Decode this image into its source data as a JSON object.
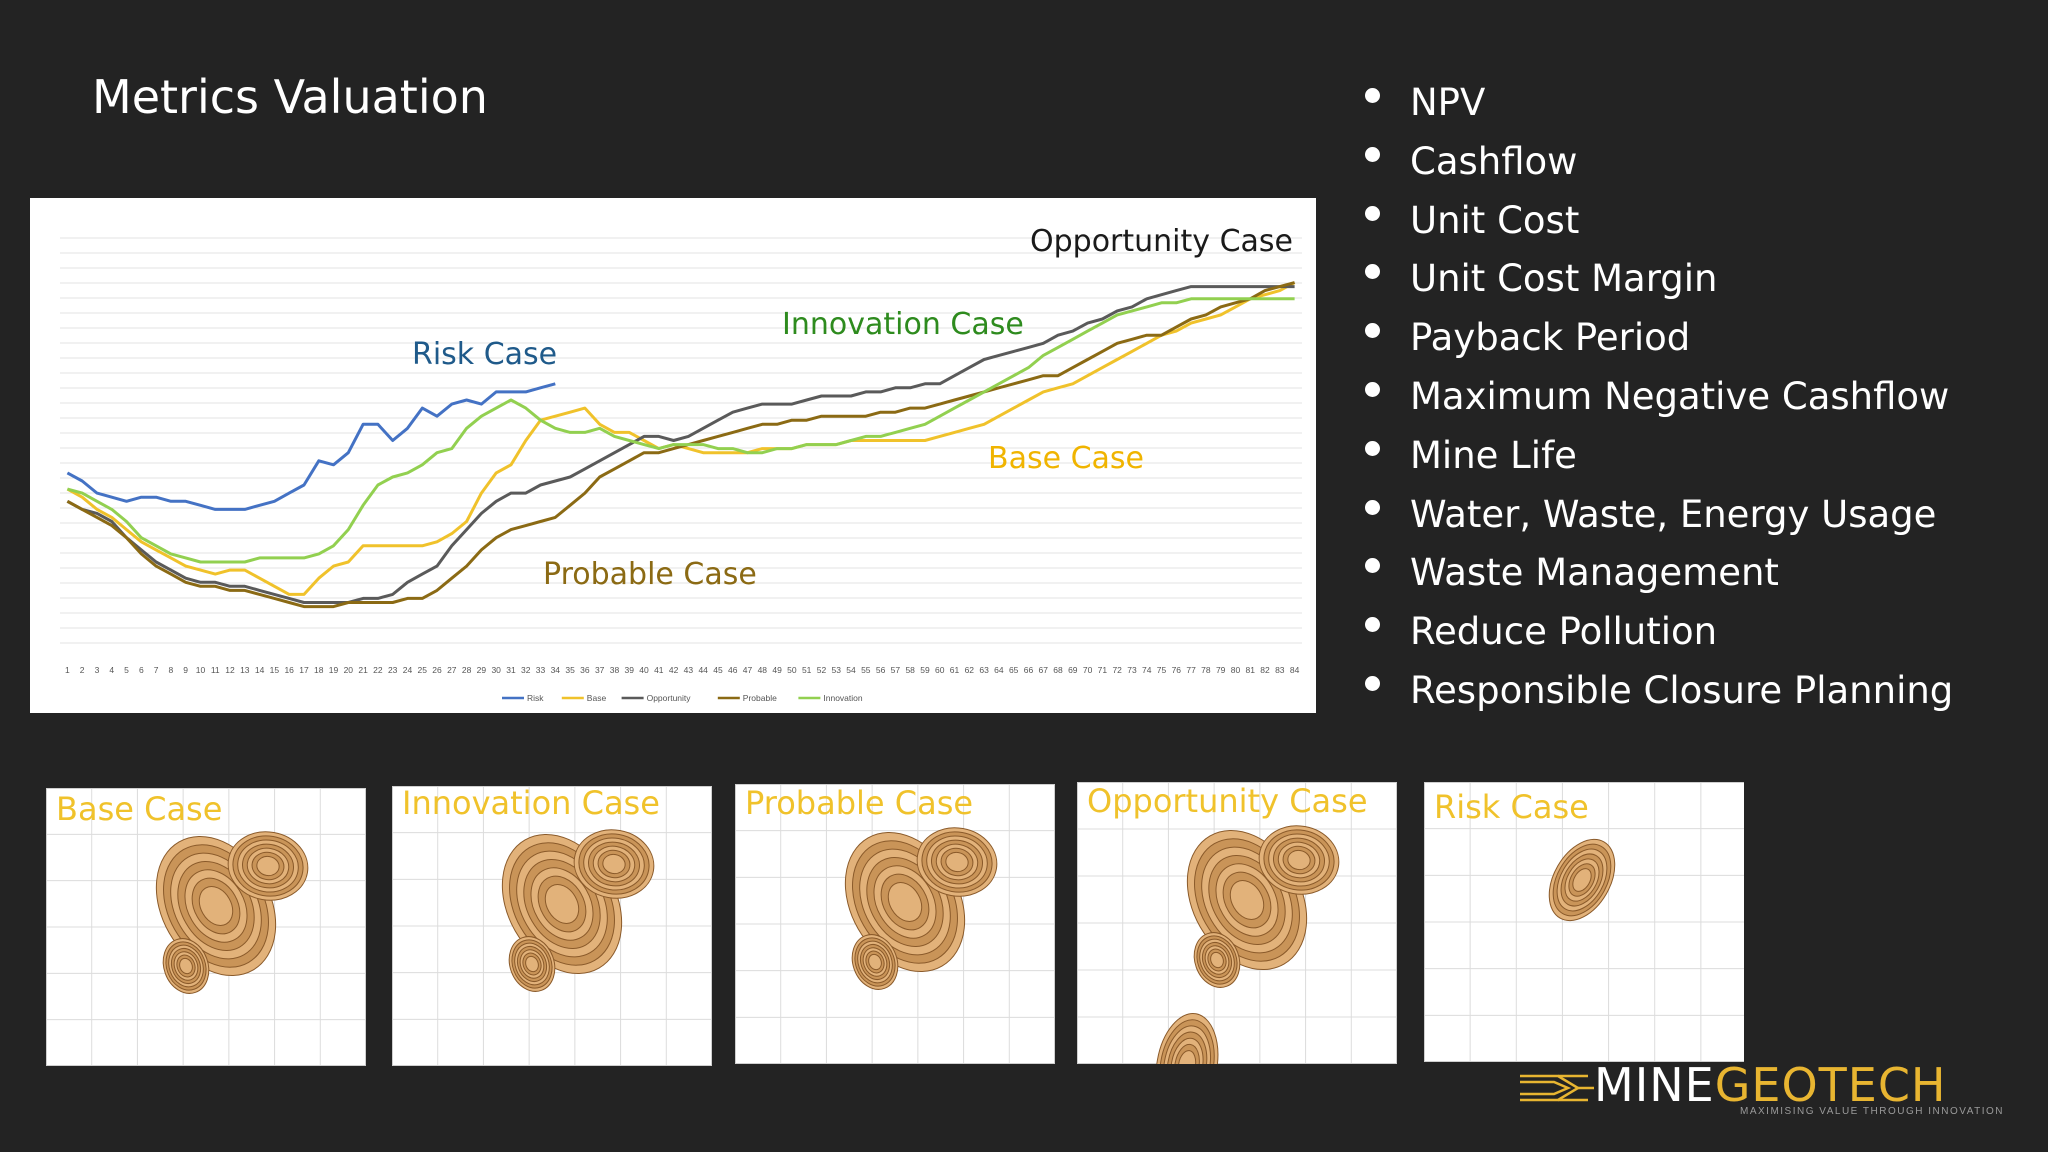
{
  "slide": {
    "title": "Metrics Valuation",
    "bullets": [
      "NPV",
      "Cashflow",
      "Unit Cost",
      "Unit Cost Margin",
      "Payback Period",
      "Maximum Negative Cashflow",
      "Mine Life",
      "Water, Waste, Energy Usage",
      "Waste Management",
      "Reduce Pollution",
      "Responsible Closure Planning"
    ]
  },
  "chart_data": {
    "type": "line",
    "title": "",
    "xlabel": "",
    "ylabel": "",
    "grid": true,
    "legend_position": "bottom",
    "x": [
      "1",
      "2",
      "3",
      "4",
      "5",
      "6",
      "7",
      "8",
      "9",
      "10",
      "11",
      "12",
      "13",
      "14",
      "15",
      "16",
      "17",
      "18",
      "19",
      "20",
      "21",
      "22",
      "23",
      "24",
      "25",
      "26",
      "27",
      "28",
      "29",
      "30",
      "31",
      "32",
      "33",
      "34",
      "35",
      "36",
      "37",
      "38",
      "39",
      "40",
      "41",
      "42",
      "43",
      "44",
      "45",
      "46",
      "47",
      "48",
      "49",
      "50",
      "51",
      "52",
      "53",
      "54",
      "55",
      "56",
      "57",
      "58",
      "59",
      "60",
      "61",
      "62",
      "63",
      "64",
      "65",
      "66",
      "67",
      "68",
      "69",
      "70",
      "71",
      "72",
      "73",
      "74",
      "75",
      "76",
      "77",
      "78",
      "79",
      "80",
      "81",
      "82",
      "83",
      "84"
    ],
    "ylim": [
      0,
      100
    ],
    "series": [
      {
        "name": "Risk",
        "color": "#4472c4",
        "values": [
          42,
          40,
          37,
          36,
          35,
          36,
          36,
          35,
          35,
          34,
          33,
          33,
          33,
          34,
          35,
          37,
          39,
          45,
          44,
          47,
          54,
          54,
          50,
          53,
          58,
          56,
          59,
          60,
          59,
          62,
          62,
          62,
          63,
          64,
          null,
          null,
          null,
          null,
          null,
          null,
          null,
          null,
          null,
          null,
          null,
          null,
          null,
          null,
          null,
          null,
          null,
          null,
          null,
          null,
          null,
          null,
          null,
          null,
          null,
          null,
          null,
          null,
          null,
          null,
          null,
          null,
          null,
          null,
          null,
          null,
          null,
          null,
          null,
          null,
          null,
          null,
          null,
          null,
          null,
          null,
          null,
          null,
          null,
          null
        ]
      },
      {
        "name": "Base",
        "color": "#f0c22b",
        "values": [
          38,
          36,
          33,
          31,
          28,
          25,
          23,
          21,
          19,
          18,
          17,
          18,
          18,
          16,
          14,
          12,
          12,
          16,
          19,
          20,
          24,
          24,
          24,
          24,
          24,
          25,
          27,
          30,
          37,
          42,
          44,
          50,
          55,
          56,
          57,
          58,
          54,
          52,
          52,
          50,
          48,
          49,
          48,
          47,
          47,
          47,
          47,
          48,
          48,
          48,
          49,
          49,
          49,
          50,
          50,
          50,
          50,
          50,
          50,
          51,
          52,
          53,
          54,
          56,
          58,
          60,
          62,
          63,
          64,
          66,
          68,
          70,
          72,
          74,
          76,
          77,
          79,
          80,
          81,
          83,
          85,
          86,
          87,
          89
        ]
      },
      {
        "name": "Opportunity",
        "color": "#5a5a5a",
        "values": [
          35,
          33,
          32,
          30,
          26,
          23,
          20,
          18,
          16,
          15,
          15,
          14,
          14,
          13,
          12,
          11,
          10,
          10,
          10,
          10,
          11,
          11,
          12,
          15,
          17,
          19,
          24,
          28,
          32,
          35,
          37,
          37,
          39,
          40,
          41,
          43,
          45,
          47,
          49,
          51,
          51,
          50,
          51,
          53,
          55,
          57,
          58,
          59,
          59,
          59,
          60,
          61,
          61,
          61,
          62,
          62,
          63,
          63,
          64,
          64,
          66,
          68,
          70,
          71,
          72,
          73,
          74,
          76,
          77,
          79,
          80,
          82,
          83,
          85,
          86,
          87,
          88,
          88,
          88,
          88,
          88,
          88,
          88,
          88
        ]
      },
      {
        "name": "Probable",
        "color": "#8b6a14",
        "values": [
          35,
          33,
          31,
          29,
          26,
          22,
          19,
          17,
          15,
          14,
          14,
          13,
          13,
          12,
          11,
          10,
          9,
          9,
          9,
          10,
          10,
          10,
          10,
          11,
          11,
          13,
          16,
          19,
          23,
          26,
          28,
          29,
          30,
          31,
          34,
          37,
          41,
          43,
          45,
          47,
          47,
          48,
          49,
          50,
          51,
          52,
          53,
          54,
          54,
          55,
          55,
          56,
          56,
          56,
          56,
          57,
          57,
          58,
          58,
          59,
          60,
          61,
          62,
          63,
          64,
          65,
          66,
          66,
          68,
          70,
          72,
          74,
          75,
          76,
          76,
          78,
          80,
          81,
          83,
          84,
          85,
          87,
          88,
          89
        ]
      },
      {
        "name": "Innovation",
        "color": "#92d050",
        "values": [
          38,
          37,
          35,
          33,
          30,
          26,
          24,
          22,
          21,
          20,
          20,
          20,
          20,
          21,
          21,
          21,
          21,
          22,
          24,
          28,
          34,
          39,
          41,
          42,
          44,
          47,
          48,
          53,
          56,
          58,
          60,
          58,
          55,
          53,
          52,
          52,
          53,
          51,
          50,
          49,
          48,
          49,
          49,
          49,
          48,
          48,
          47,
          47,
          48,
          48,
          49,
          49,
          49,
          50,
          51,
          51,
          52,
          53,
          54,
          56,
          58,
          60,
          62,
          64,
          66,
          68,
          71,
          73,
          75,
          77,
          79,
          81,
          82,
          83,
          84,
          84,
          85,
          85,
          85,
          85,
          85,
          85,
          85,
          85
        ]
      }
    ],
    "annotations": [
      {
        "text": "Opportunity Case",
        "color": "#1a1a1a"
      },
      {
        "text": "Innovation Case",
        "color": "#2e8b1e"
      },
      {
        "text": "Risk Case",
        "color": "#1f5a8a"
      },
      {
        "text": "Base Case",
        "color": "#f0b400"
      },
      {
        "text": "Probable Case",
        "color": "#8b6a14"
      }
    ]
  },
  "thumbnails": [
    {
      "label": "Base Case"
    },
    {
      "label": "Innovation Case"
    },
    {
      "label": "Probable Case"
    },
    {
      "label": "Opportunity Case"
    },
    {
      "label": "Risk Case"
    }
  ],
  "brand": {
    "name_part1": "MINE",
    "name_part2": "GEOTECH",
    "tagline": "MAXIMISING VALUE THROUGH INNOVATION",
    "accent": "#e8b531"
  }
}
